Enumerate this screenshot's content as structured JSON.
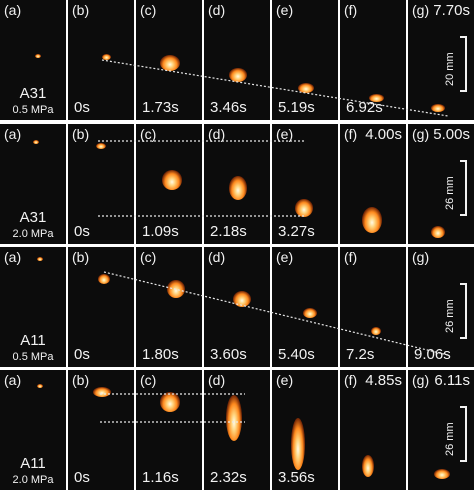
{
  "rows": [
    {
      "sample": "A31",
      "pressure": "0.5 MPa",
      "scale_label": "20 mm",
      "panels": [
        {
          "label": "(a)",
          "time": ""
        },
        {
          "label": "(b)",
          "time": "0s"
        },
        {
          "label": "(c)",
          "time": "1.73s"
        },
        {
          "label": "(d)",
          "time": "3.46s"
        },
        {
          "label": "(e)",
          "time": "5.19s"
        },
        {
          "label": "(f)",
          "time": "6.92s"
        },
        {
          "label": "(g)",
          "time": "7.70s",
          "time_top": true
        }
      ]
    },
    {
      "sample": "A31",
      "pressure": "2.0 MPa",
      "scale_label": "26 mm",
      "panels": [
        {
          "label": "(a)",
          "time": ""
        },
        {
          "label": "(b)",
          "time": "0s"
        },
        {
          "label": "(c)",
          "time": "1.09s"
        },
        {
          "label": "(d)",
          "time": "2.18s"
        },
        {
          "label": "(e)",
          "time": "3.27s"
        },
        {
          "label": "(f)",
          "time": "4.00s",
          "time_top": true
        },
        {
          "label": "(g)",
          "time": "5.00s",
          "time_top": true
        }
      ]
    },
    {
      "sample": "A11",
      "pressure": "0.5 MPa",
      "scale_label": "26 mm",
      "panels": [
        {
          "label": "(a)",
          "time": ""
        },
        {
          "label": "(b)",
          "time": "0s"
        },
        {
          "label": "(c)",
          "time": "1.80s"
        },
        {
          "label": "(d)",
          "time": "3.60s"
        },
        {
          "label": "(e)",
          "time": "5.40s"
        },
        {
          "label": "(f)",
          "time": "7.2s"
        },
        {
          "label": "(g)",
          "time": "9.06s"
        }
      ]
    },
    {
      "sample": "A11",
      "pressure": "2.0 MPa",
      "scale_label": "26 mm",
      "panels": [
        {
          "label": "(a)",
          "time": ""
        },
        {
          "label": "(b)",
          "time": "0s"
        },
        {
          "label": "(c)",
          "time": "1.16s"
        },
        {
          "label": "(d)",
          "time": "2.32s"
        },
        {
          "label": "(e)",
          "time": "3.56s"
        },
        {
          "label": "(f)",
          "time": "4.85s",
          "time_top": true
        },
        {
          "label": "(g)",
          "time": "6.11s",
          "time_top": true
        }
      ]
    }
  ]
}
